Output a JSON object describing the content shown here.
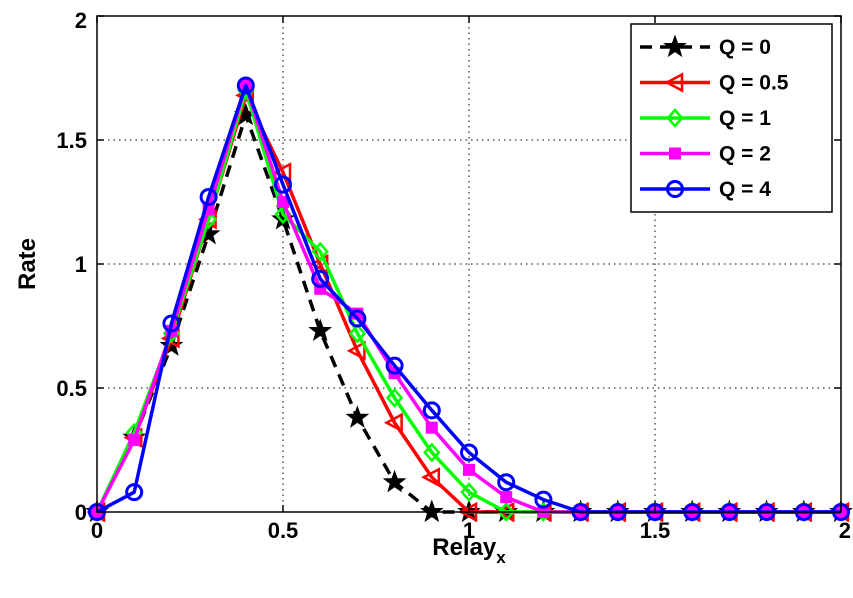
{
  "chart_data": {
    "type": "line",
    "xlabel": "Relay",
    "xlabel_sub": "x",
    "ylabel": "Rate",
    "xlim": [
      0,
      2
    ],
    "ylim": [
      0,
      2
    ],
    "xticks": [
      0,
      0.5,
      1,
      1.5,
      2
    ],
    "yticks": [
      0,
      0.5,
      1,
      1.5,
      2
    ],
    "xtick_labels": [
      "0",
      "0.5",
      "1",
      "1.5",
      "2"
    ],
    "ytick_labels": [
      "0",
      "0.5",
      "1",
      "1.5",
      "2"
    ],
    "grid": true,
    "legend_position": "top-right",
    "x": [
      0,
      0.1,
      0.2,
      0.3,
      0.4,
      0.5,
      0.6,
      0.7,
      0.8,
      0.9,
      1.0,
      1.1,
      1.2,
      1.3,
      1.4,
      1.5,
      1.6,
      1.7,
      1.8,
      1.9,
      2.0
    ],
    "series": [
      {
        "name": "Q = 0",
        "color": "#000000",
        "dash": true,
        "marker": "star",
        "values": [
          0,
          0.3,
          0.67,
          1.12,
          1.6,
          1.18,
          0.73,
          0.38,
          0.12,
          0,
          0,
          0,
          0,
          0,
          0,
          0,
          0,
          0,
          0,
          0,
          0
        ]
      },
      {
        "name": "Q = 0.5",
        "color": "#ff0000",
        "dash": false,
        "marker": "triangle-left",
        "values": [
          0,
          0.3,
          0.7,
          1.18,
          1.68,
          1.37,
          1.0,
          0.65,
          0.36,
          0.14,
          0,
          0,
          0,
          0,
          0,
          0,
          0,
          0,
          0,
          0,
          0
        ]
      },
      {
        "name": "Q = 1",
        "color": "#00ff00",
        "dash": false,
        "marker": "diamond",
        "values": [
          0,
          0.32,
          0.72,
          1.18,
          1.7,
          1.2,
          1.05,
          0.72,
          0.46,
          0.24,
          0.08,
          0,
          0,
          0,
          0,
          0,
          0,
          0,
          0,
          0,
          0
        ]
      },
      {
        "name": "Q = 2",
        "color": "#ff00ff",
        "dash": false,
        "marker": "square",
        "values": [
          0,
          0.29,
          0.73,
          1.22,
          1.72,
          1.25,
          0.9,
          0.8,
          0.56,
          0.34,
          0.17,
          0.06,
          0,
          0,
          0,
          0,
          0,
          0,
          0,
          0,
          0
        ]
      },
      {
        "name": "Q = 4",
        "color": "#0000ff",
        "dash": false,
        "marker": "circle",
        "values": [
          0,
          0.08,
          0.76,
          1.27,
          1.72,
          1.32,
          0.94,
          0.78,
          0.59,
          0.41,
          0.24,
          0.12,
          0.05,
          0,
          0,
          0,
          0,
          0,
          0,
          0,
          0
        ]
      }
    ]
  }
}
